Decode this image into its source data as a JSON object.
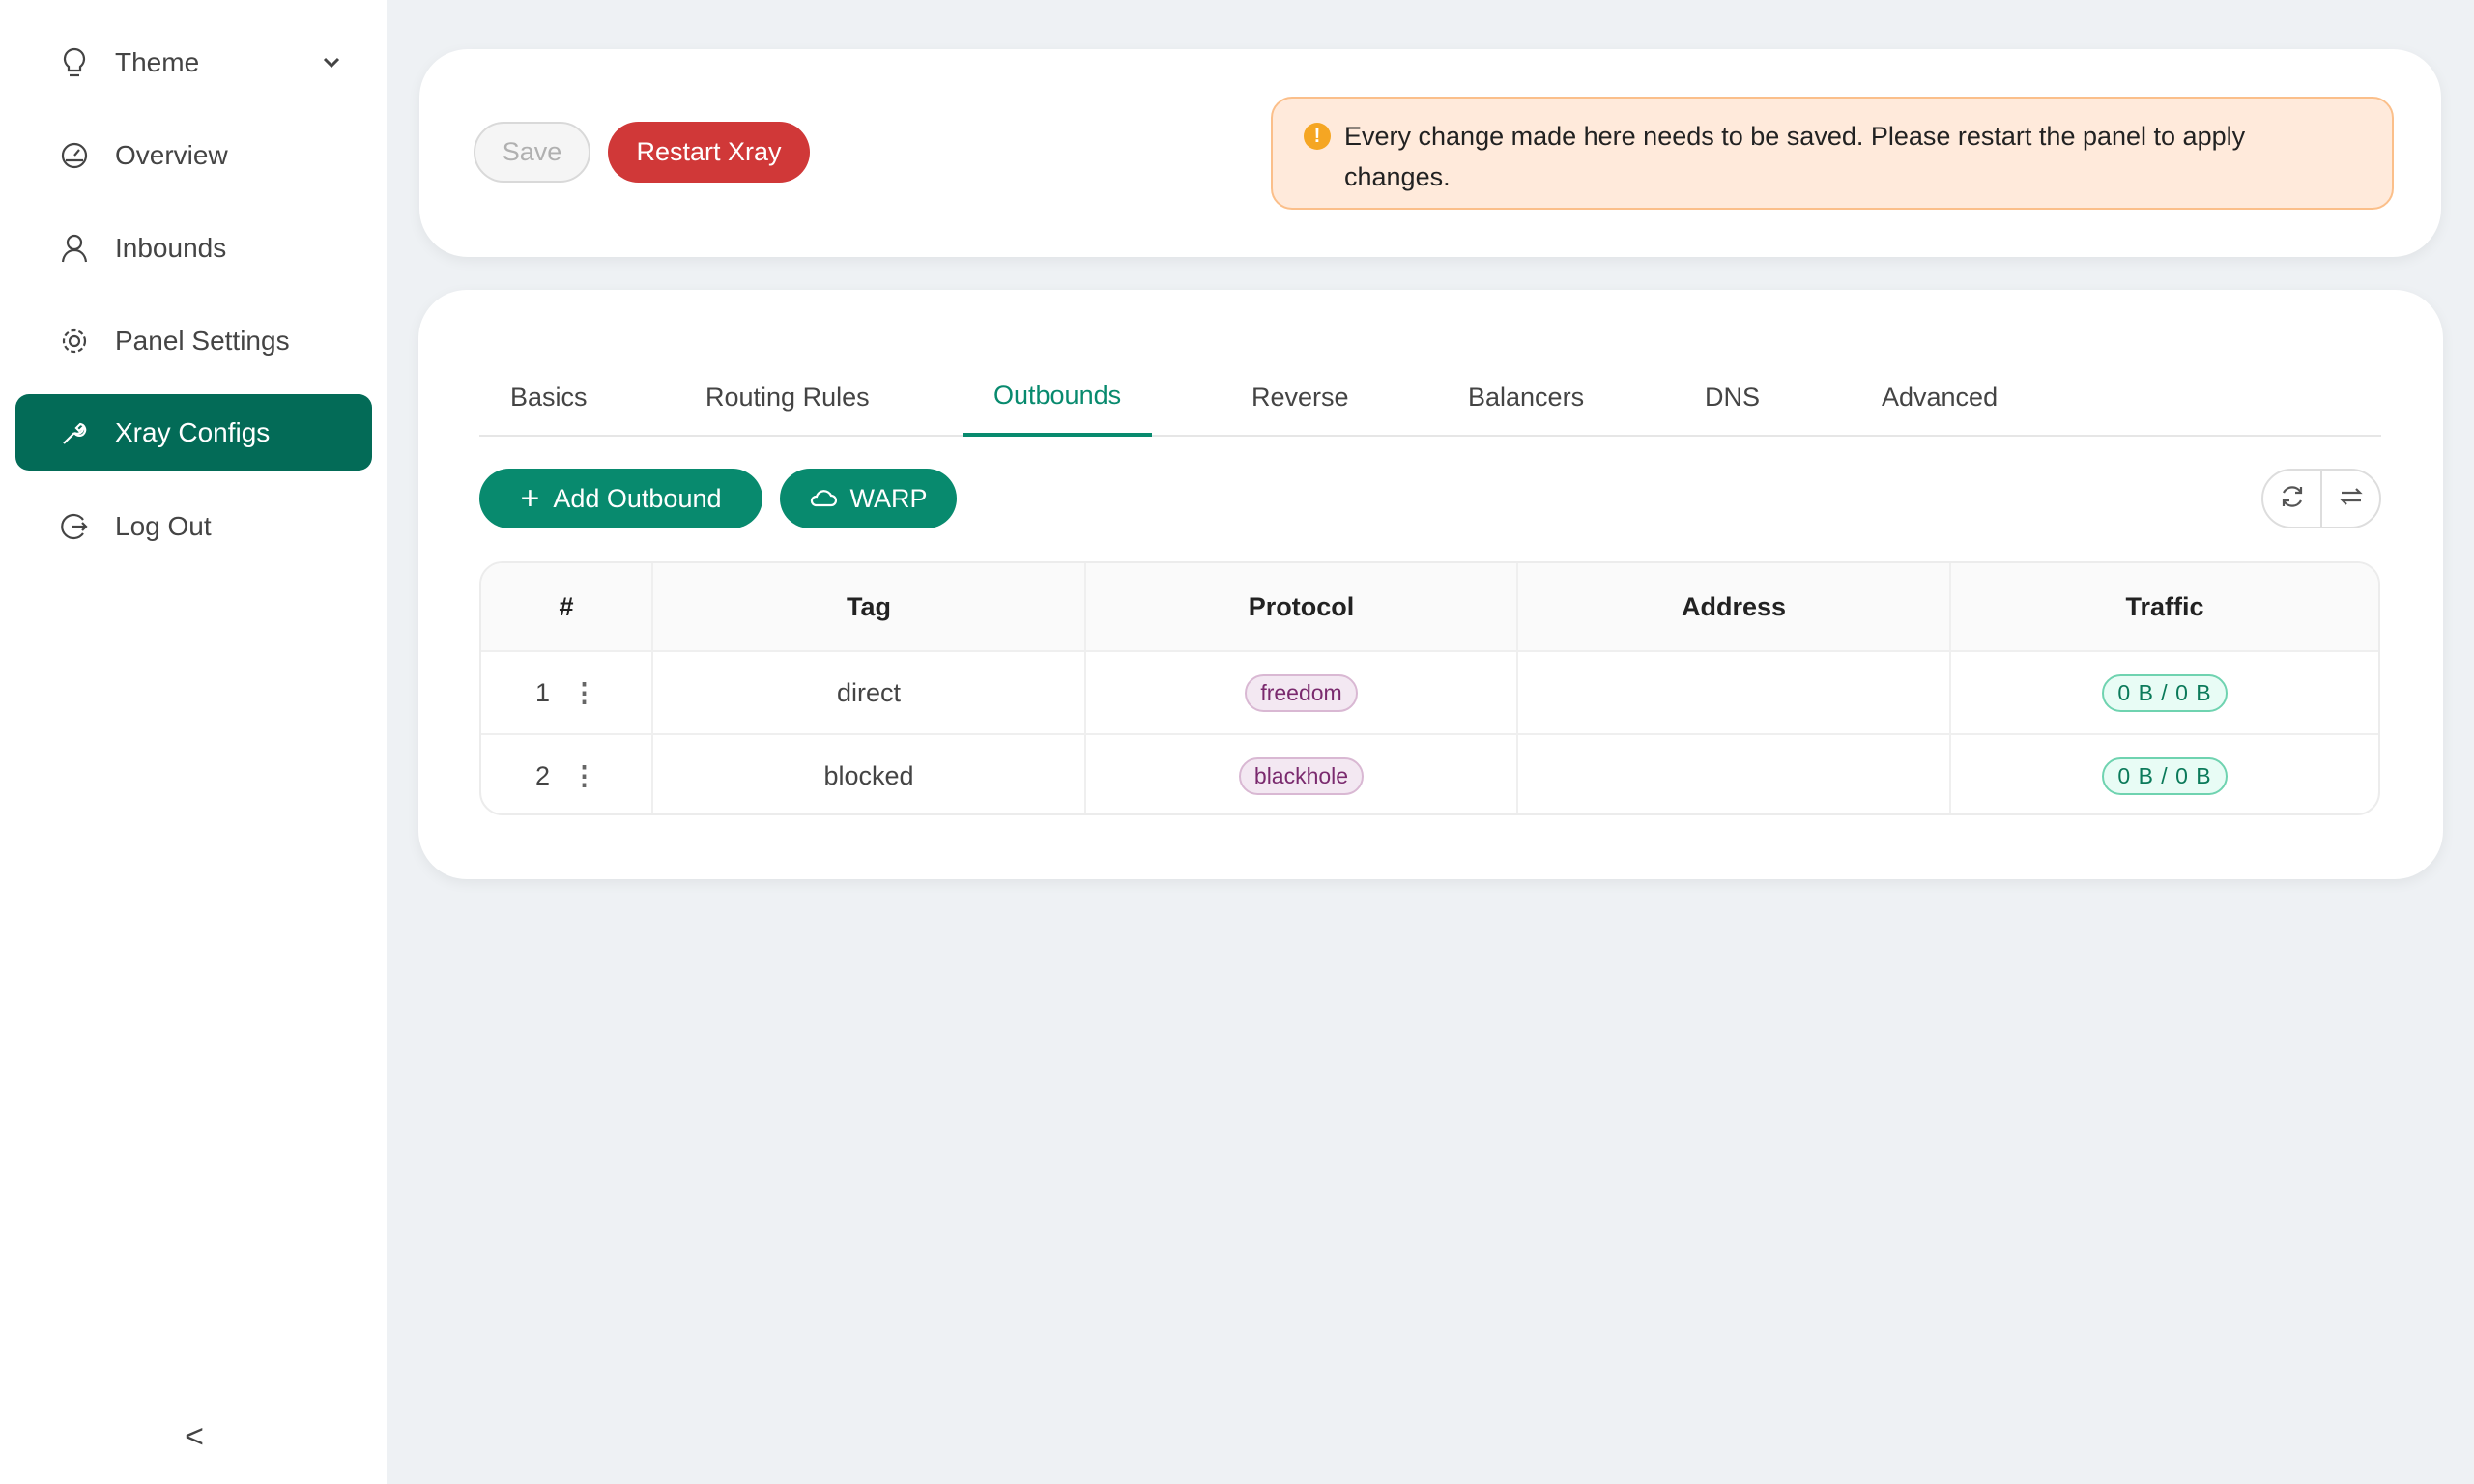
{
  "sidebar": {
    "items": [
      {
        "label": "Theme",
        "icon": "bulb-icon"
      },
      {
        "label": "Overview",
        "icon": "dashboard-icon"
      },
      {
        "label": "Inbounds",
        "icon": "user-icon"
      },
      {
        "label": "Panel Settings",
        "icon": "gear-icon"
      },
      {
        "label": "Xray Configs",
        "icon": "tool-icon",
        "active": true
      },
      {
        "label": "Log Out",
        "icon": "logout-icon"
      }
    ],
    "collapse": "<"
  },
  "toolbar": {
    "save_label": "Save",
    "restart_label": "Restart Xray",
    "alert": "Every change made here needs to be saved. Please restart the panel to apply changes."
  },
  "tabs": [
    "Basics",
    "Routing Rules",
    "Outbounds",
    "Reverse",
    "Balancers",
    "DNS",
    "Advanced"
  ],
  "active_tab": "Outbounds",
  "actions": {
    "add_outbound": "Add Outbound",
    "warp": "WARP"
  },
  "table": {
    "headers": [
      "#",
      "Tag",
      "Protocol",
      "Address",
      "Traffic"
    ],
    "rows": [
      {
        "num": "1",
        "tag": "direct",
        "protocol": "freedom",
        "address": "",
        "traffic": "0 B / 0 B"
      },
      {
        "num": "2",
        "tag": "blocked",
        "protocol": "blackhole",
        "address": "",
        "traffic": "0 B / 0 B"
      }
    ]
  },
  "colors": {
    "accent": "#088a6e",
    "active_nav": "#036b57",
    "danger": "#d03838",
    "alert_bg": "#ffeadb"
  }
}
